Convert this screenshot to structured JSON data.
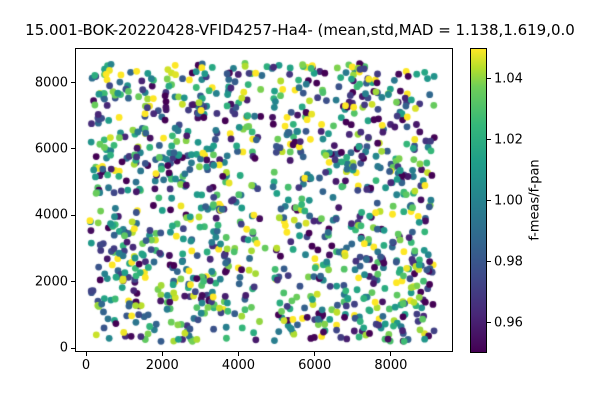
{
  "chart_data": {
    "type": "scatter",
    "title": "15.001-BOK-20220428-VFID4257-Ha4- (mean,std,MAD = 1.138,1.619,0.0",
    "xlabel": "",
    "ylabel": "",
    "grid": false,
    "xlim": [
      -290,
      9630
    ],
    "ylim": [
      -120,
      9040
    ],
    "x_ticks": [
      0,
      2000,
      4000,
      6000,
      8000
    ],
    "y_ticks": [
      0,
      2000,
      4000,
      6000,
      8000
    ],
    "x_tick_labels": [
      "0",
      "2000",
      "4000",
      "6000",
      "8000"
    ],
    "y_tick_labels": [
      "0",
      "2000",
      "4000",
      "6000",
      "8000"
    ],
    "colormap": "viridis",
    "colorbar": {
      "label": "f-meas/f-pan",
      "range": [
        0.95,
        1.05
      ],
      "ticks": [
        1.04,
        1.02,
        1.0,
        0.98,
        0.96
      ],
      "tick_labels": [
        "1.04",
        "1.02",
        "1.00",
        "0.98",
        "0.96"
      ]
    },
    "points_spec": {
      "count": 1300,
      "seed": 20220428,
      "x_range": [
        100,
        9140
      ],
      "y_range": [
        200,
        8580
      ],
      "gap_x": [
        4600,
        4880
      ],
      "gap_x_leak": 0.06,
      "gap_y": [
        4330,
        4600
      ],
      "gap_y_leak": 0.2,
      "color_value_spread": [
        -0.08,
        1.08
      ],
      "marker_radius_px": 3.4
    }
  }
}
